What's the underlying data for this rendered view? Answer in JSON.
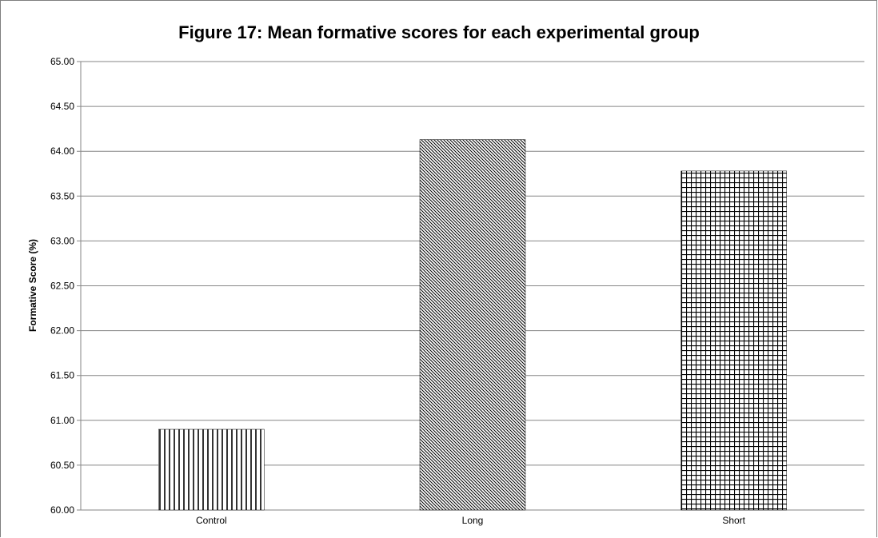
{
  "chart_data": {
    "type": "bar",
    "title": "Figure 17: Mean formative scores for each experimental group",
    "xlabel": "",
    "ylabel": "Formative Score (%)",
    "categories": [
      "Control",
      "Long",
      "Short"
    ],
    "values": [
      60.9,
      64.13,
      63.78
    ],
    "ylim": [
      60,
      65
    ],
    "yticks": [
      "60.00",
      "60.50",
      "61.00",
      "61.50",
      "62.00",
      "62.50",
      "63.00",
      "63.50",
      "64.00",
      "64.50",
      "65.00"
    ],
    "patterns": [
      "vertical-lines",
      "diagonal-lines",
      "grid"
    ],
    "grid": true,
    "legend": "none"
  }
}
